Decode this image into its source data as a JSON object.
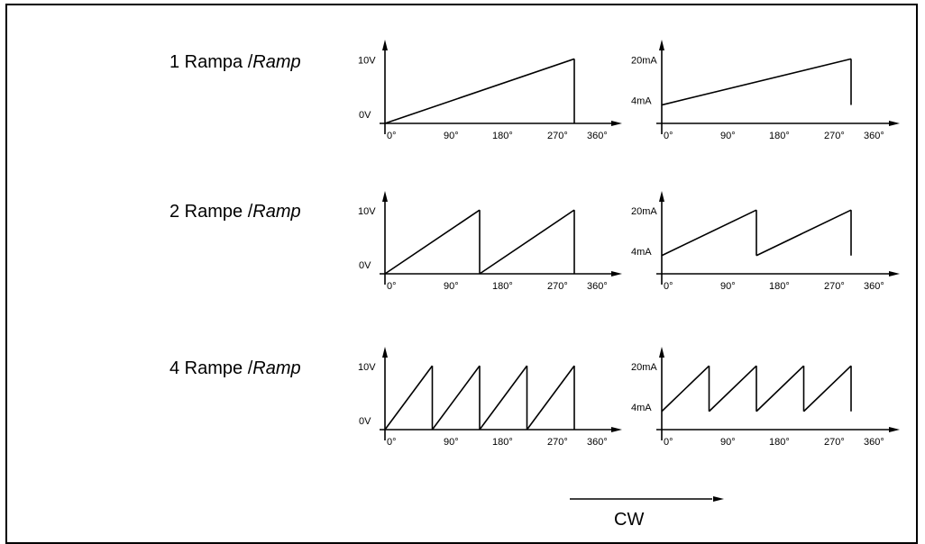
{
  "rows": [
    {
      "label_prefix": "1 Rampa /",
      "label_italic": "Ramp",
      "ramps": 1
    },
    {
      "label_prefix": "2 Rampe /",
      "label_italic": "Ramp",
      "ramps": 2
    },
    {
      "label_prefix": "4 Rampe /",
      "label_italic": "Ramp",
      "ramps": 4
    }
  ],
  "voltage_axis": {
    "low": "0V",
    "high": "10V"
  },
  "current_axis": {
    "low": "4mA",
    "high": "20mA"
  },
  "angle_ticks": [
    "0°",
    "90°",
    "180°",
    "270°",
    "360°"
  ],
  "direction": {
    "label": "CW"
  },
  "colors": {
    "line": "#000000",
    "background": "#ffffff"
  }
}
